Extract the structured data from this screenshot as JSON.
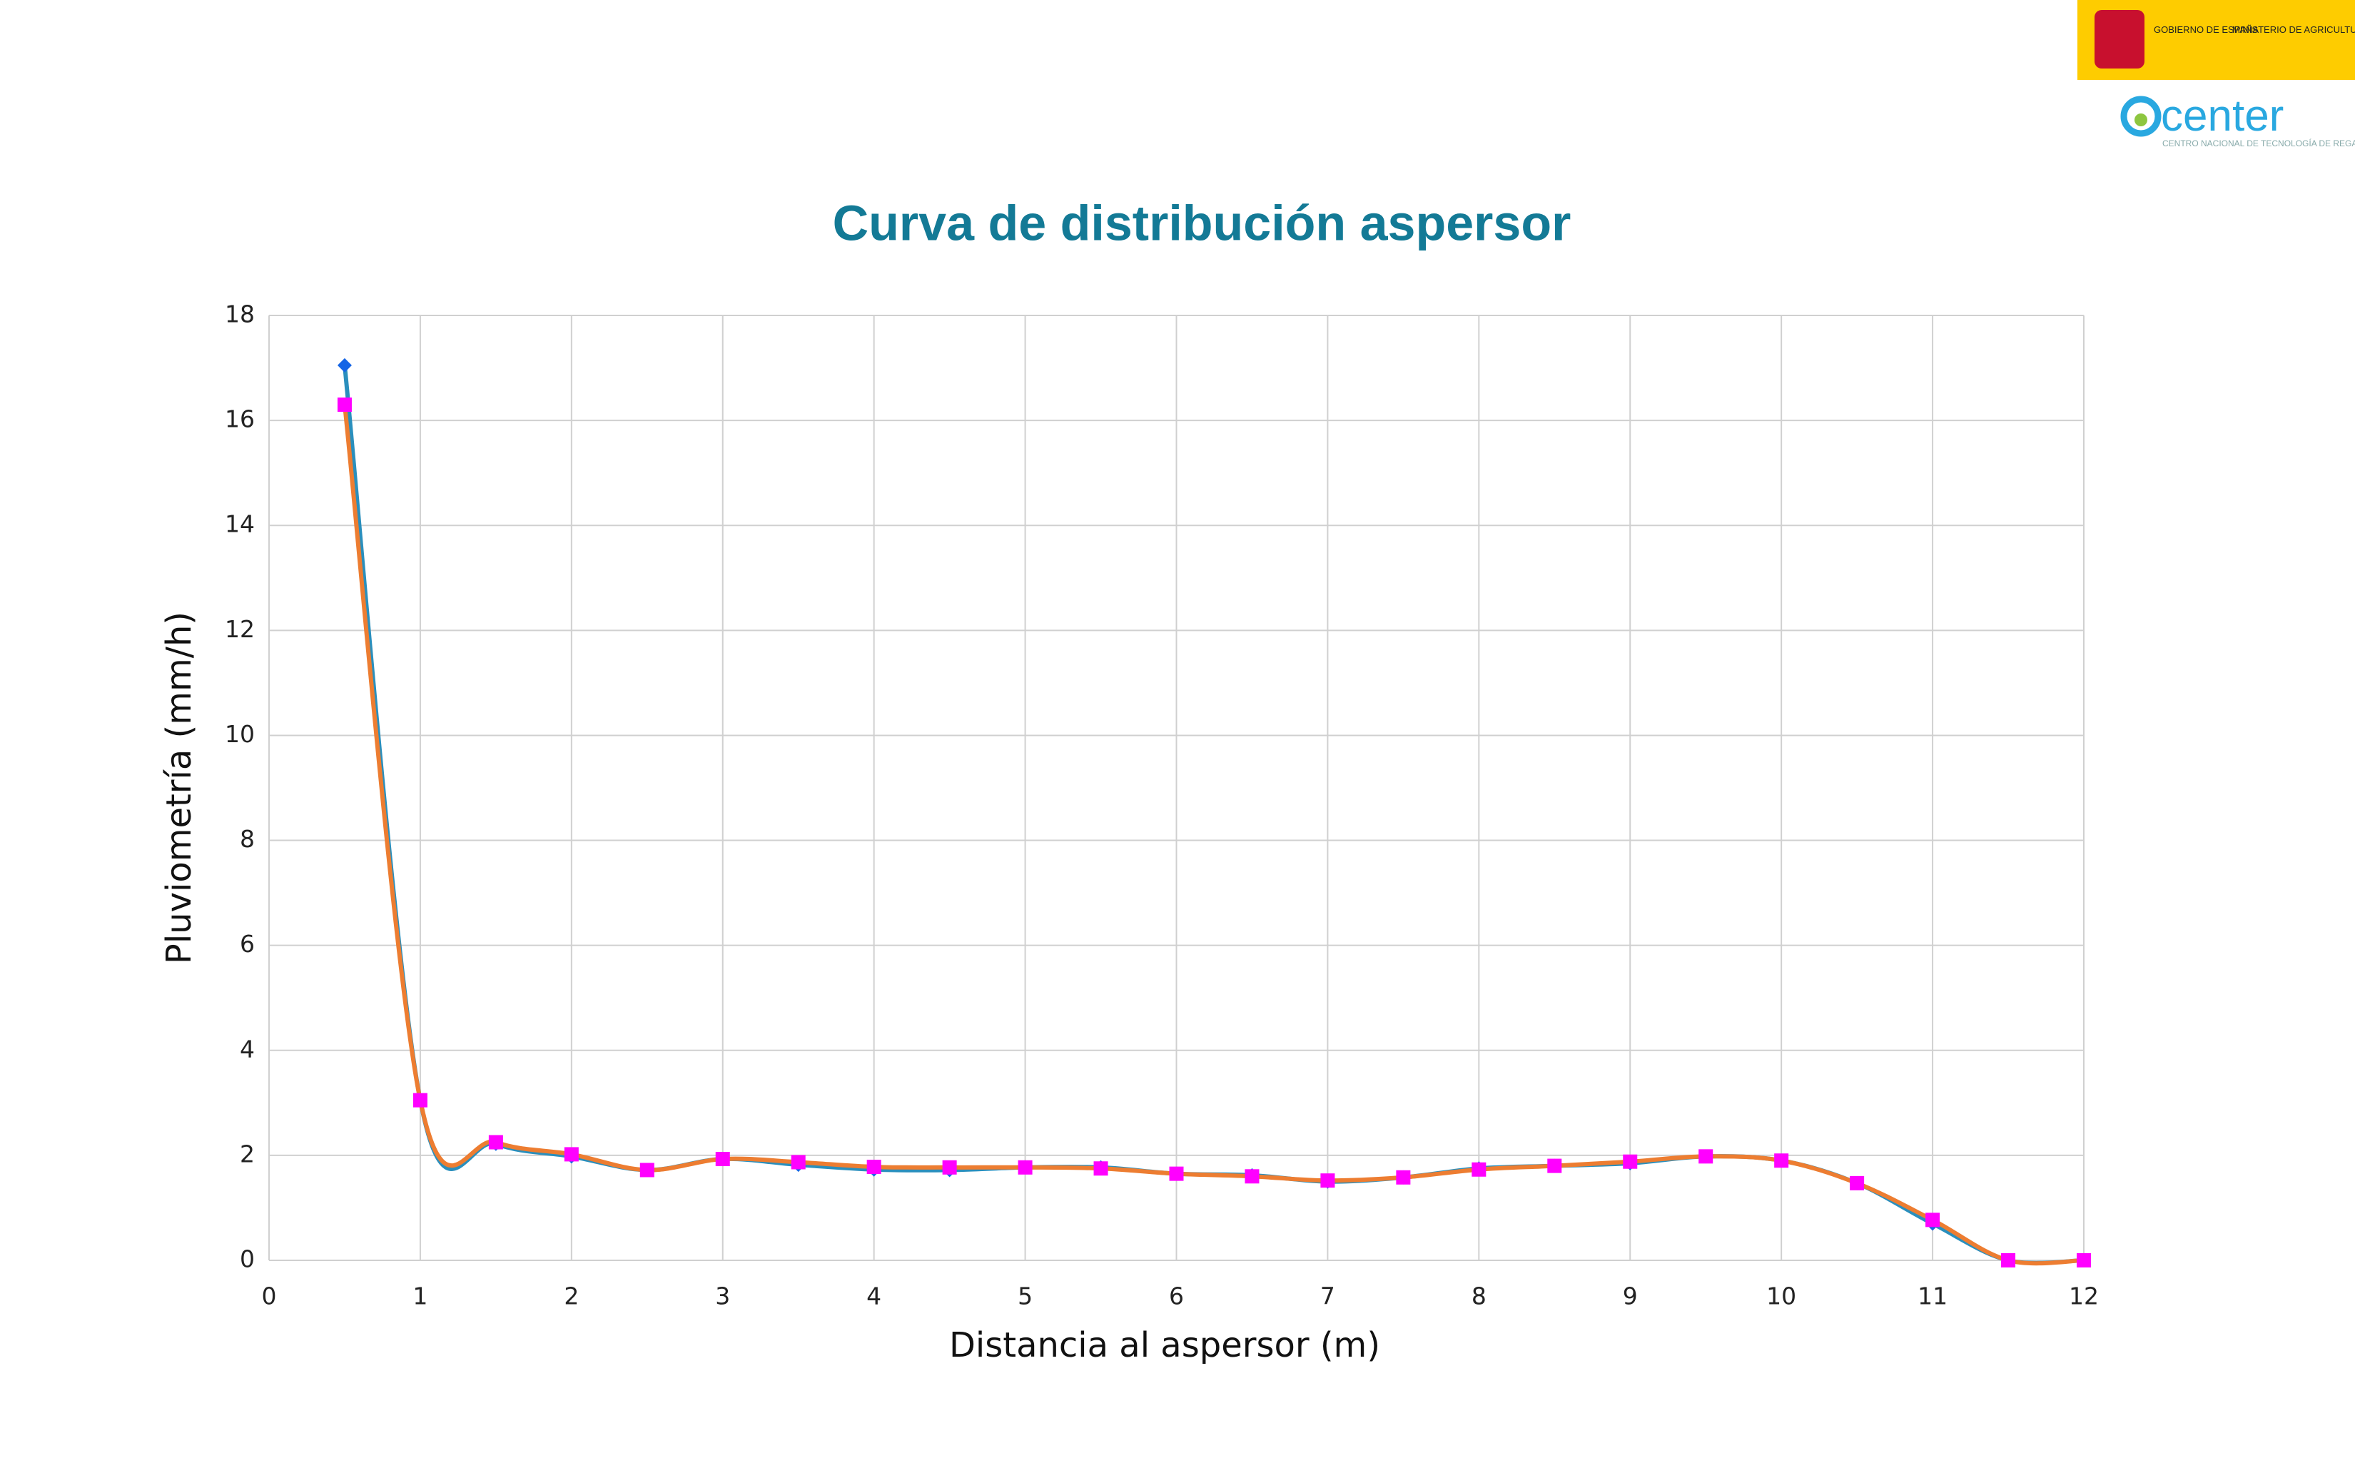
{
  "header": {
    "gov_left": "GOBIERNO DE ESPAÑA",
    "gov_right": "MINISTERIO DE AGRICULTURA, PESCA Y ALIMENTACIÓN",
    "brand": "center",
    "brand_sub": "CENTRO NACIONAL DE TECNOLOGÍA DE REGADÍOS"
  },
  "chart_data": {
    "type": "line",
    "title": "Curva de distribución aspersor",
    "x_label": "Distancia al aspersor (m)",
    "y_label": "Pluviometría (mm/h)",
    "x": [
      0.5,
      1,
      1.5,
      2,
      2.5,
      3,
      3.5,
      4,
      4.5,
      5,
      5.5,
      6,
      6.5,
      7,
      7.5,
      8,
      8.5,
      9,
      9.5,
      10,
      10.5,
      11,
      11.5,
      12
    ],
    "series": [
      {
        "color": "#2a8fbd",
        "marker_color": "#1565e6",
        "marker": "diamond",
        "values": [
          17.05,
          3.05,
          2.22,
          1.98,
          1.72,
          1.93,
          1.82,
          1.73,
          1.72,
          1.77,
          1.77,
          1.65,
          1.62,
          1.5,
          1.58,
          1.75,
          1.8,
          1.85,
          1.98,
          1.9,
          1.47,
          0.7,
          0,
          0
        ]
      },
      {
        "color": "#ed7d31",
        "marker_color": "#ff00ff",
        "marker": "square",
        "values": [
          16.3,
          3.05,
          2.25,
          2.02,
          1.72,
          1.93,
          1.87,
          1.78,
          1.77,
          1.77,
          1.75,
          1.65,
          1.6,
          1.52,
          1.58,
          1.73,
          1.8,
          1.88,
          1.98,
          1.9,
          1.47,
          0.77,
          0,
          0
        ]
      }
    ],
    "xlim": [
      0,
      12
    ],
    "xticks": [
      0,
      1,
      2,
      3,
      4,
      5,
      6,
      7,
      8,
      9,
      10,
      11,
      12
    ],
    "ylim": [
      0,
      18
    ],
    "yticks": [
      0,
      2,
      4,
      6,
      8,
      10,
      12,
      14,
      16,
      18
    ],
    "grid": true,
    "smooth": true
  }
}
